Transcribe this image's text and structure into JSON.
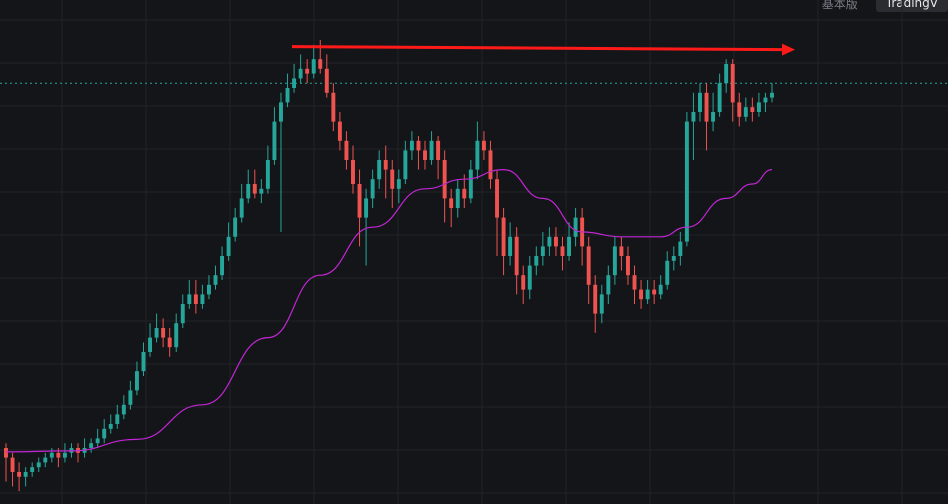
{
  "tabs": {
    "basic": "基本版",
    "tradingview": "TradingV"
  },
  "colors": {
    "background": "#141518",
    "grid": "#222328",
    "up": "#26a69a",
    "down": "#ef5350",
    "ma": "#c026d3",
    "arrow": "#ff1a1a",
    "price_line": "#26a69a"
  },
  "chart_data": {
    "type": "candlestick",
    "grid": true,
    "y_min": 0,
    "y_max": 100,
    "price_line_value": 86,
    "candles": [
      [
        10,
        8,
        11,
        3
      ],
      [
        8,
        5,
        9,
        2
      ],
      [
        5,
        4,
        7,
        1
      ],
      [
        4,
        5,
        6,
        2
      ],
      [
        5,
        6,
        7,
        4
      ],
      [
        6,
        7,
        8,
        5
      ],
      [
        7,
        8,
        9,
        6
      ],
      [
        8,
        9,
        10,
        7
      ],
      [
        9,
        8,
        10,
        6
      ],
      [
        8,
        9,
        11,
        7
      ],
      [
        9,
        10,
        11,
        8
      ],
      [
        10,
        9,
        11,
        7
      ],
      [
        9,
        10,
        12,
        8
      ],
      [
        10,
        11,
        12,
        9
      ],
      [
        11,
        12,
        14,
        10
      ],
      [
        12,
        14,
        16,
        11
      ],
      [
        14,
        15,
        17,
        13
      ],
      [
        15,
        17,
        19,
        14
      ],
      [
        17,
        19,
        21,
        16
      ],
      [
        19,
        22,
        24,
        18
      ],
      [
        22,
        26,
        28,
        21
      ],
      [
        26,
        30,
        32,
        25
      ],
      [
        30,
        33,
        36,
        29
      ],
      [
        33,
        35,
        38,
        32
      ],
      [
        35,
        33,
        37,
        31
      ],
      [
        33,
        31,
        35,
        29
      ],
      [
        31,
        36,
        38,
        30
      ],
      [
        36,
        40,
        42,
        35
      ],
      [
        40,
        42,
        45,
        39
      ],
      [
        42,
        40,
        45,
        38
      ],
      [
        40,
        42,
        44,
        39
      ],
      [
        42,
        44,
        46,
        41
      ],
      [
        44,
        46,
        48,
        43
      ],
      [
        46,
        50,
        52,
        45
      ],
      [
        50,
        54,
        57,
        49
      ],
      [
        54,
        58,
        60,
        53
      ],
      [
        58,
        62,
        65,
        57
      ],
      [
        62,
        65,
        68,
        61
      ],
      [
        65,
        63,
        68,
        62
      ],
      [
        63,
        64,
        66,
        61
      ],
      [
        64,
        70,
        73,
        63
      ],
      [
        70,
        78,
        81,
        69
      ],
      [
        78,
        82,
        84,
        55
      ],
      [
        82,
        85,
        88,
        81
      ],
      [
        85,
        87,
        90,
        84
      ],
      [
        87,
        89,
        92,
        86
      ],
      [
        89,
        88,
        91,
        86
      ],
      [
        88,
        91,
        94,
        87
      ],
      [
        91,
        89,
        95,
        88
      ],
      [
        89,
        84,
        92,
        83
      ],
      [
        84,
        78,
        86,
        76
      ],
      [
        78,
        74,
        80,
        72
      ],
      [
        74,
        70,
        76,
        68
      ],
      [
        70,
        65,
        73,
        63
      ],
      [
        65,
        58,
        68,
        52
      ],
      [
        58,
        62,
        64,
        48
      ],
      [
        62,
        66,
        68,
        60
      ],
      [
        66,
        70,
        72,
        64
      ],
      [
        70,
        68,
        73,
        62
      ],
      [
        68,
        64,
        70,
        60
      ],
      [
        64,
        66,
        68,
        61
      ],
      [
        66,
        72,
        74,
        65
      ],
      [
        72,
        74,
        76,
        70
      ],
      [
        74,
        72,
        75,
        68
      ],
      [
        72,
        70,
        74,
        68
      ],
      [
        70,
        74,
        76,
        69
      ],
      [
        74,
        70,
        75,
        66
      ],
      [
        70,
        62,
        72,
        57
      ],
      [
        62,
        60,
        64,
        56
      ],
      [
        60,
        64,
        66,
        58
      ],
      [
        64,
        62,
        67,
        60
      ],
      [
        62,
        68,
        70,
        61
      ],
      [
        68,
        74,
        78,
        66
      ],
      [
        74,
        72,
        76,
        70
      ],
      [
        72,
        66,
        74,
        64
      ],
      [
        66,
        58,
        68,
        50
      ],
      [
        58,
        50,
        60,
        46
      ],
      [
        50,
        54,
        57,
        48
      ],
      [
        54,
        46,
        56,
        42
      ],
      [
        46,
        43,
        48,
        40
      ],
      [
        43,
        48,
        50,
        41
      ],
      [
        48,
        50,
        52,
        46
      ],
      [
        50,
        52,
        55,
        48
      ],
      [
        52,
        54,
        56,
        50
      ],
      [
        54,
        52,
        56,
        50
      ],
      [
        52,
        50,
        54,
        47
      ],
      [
        50,
        54,
        57,
        49
      ],
      [
        54,
        58,
        60,
        52
      ],
      [
        58,
        52,
        60,
        48
      ],
      [
        52,
        44,
        54,
        40
      ],
      [
        44,
        38,
        46,
        34
      ],
      [
        38,
        42,
        44,
        36
      ],
      [
        42,
        46,
        48,
        40
      ],
      [
        46,
        52,
        54,
        44
      ],
      [
        52,
        50,
        54,
        47
      ],
      [
        50,
        46,
        52,
        44
      ],
      [
        46,
        43,
        48,
        40
      ],
      [
        43,
        41,
        45,
        39
      ],
      [
        41,
        43,
        45,
        40
      ],
      [
        43,
        42,
        45,
        40
      ],
      [
        42,
        44,
        46,
        41
      ],
      [
        44,
        49,
        51,
        43
      ],
      [
        49,
        50,
        52,
        47
      ],
      [
        50,
        53,
        55,
        48
      ],
      [
        53,
        78,
        80,
        52
      ],
      [
        78,
        80,
        84,
        70
      ],
      [
        80,
        84,
        86,
        78
      ],
      [
        84,
        78,
        86,
        72
      ],
      [
        78,
        80,
        84,
        76
      ],
      [
        80,
        86,
        88,
        79
      ],
      [
        86,
        90,
        91,
        84
      ],
      [
        90,
        82,
        91,
        78
      ],
      [
        82,
        79,
        84,
        77
      ],
      [
        79,
        81,
        83,
        78
      ],
      [
        81,
        80,
        83,
        78
      ],
      [
        80,
        82,
        84,
        79
      ],
      [
        82,
        83,
        84,
        80
      ],
      [
        83,
        84,
        86,
        82
      ]
    ],
    "ma": [
      [
        0,
        9.2
      ],
      [
        10,
        9.4
      ],
      [
        20,
        11.8
      ],
      [
        30,
        19
      ],
      [
        40,
        33
      ],
      [
        48,
        46
      ],
      [
        56,
        56
      ],
      [
        64,
        64
      ],
      [
        70,
        66
      ],
      [
        76,
        68
      ],
      [
        82,
        62
      ],
      [
        88,
        55
      ],
      [
        94,
        54
      ],
      [
        100,
        54
      ],
      [
        104,
        56
      ],
      [
        110,
        62
      ],
      [
        114,
        65
      ],
      [
        117,
        68
      ]
    ],
    "resistance_level": 93
  }
}
